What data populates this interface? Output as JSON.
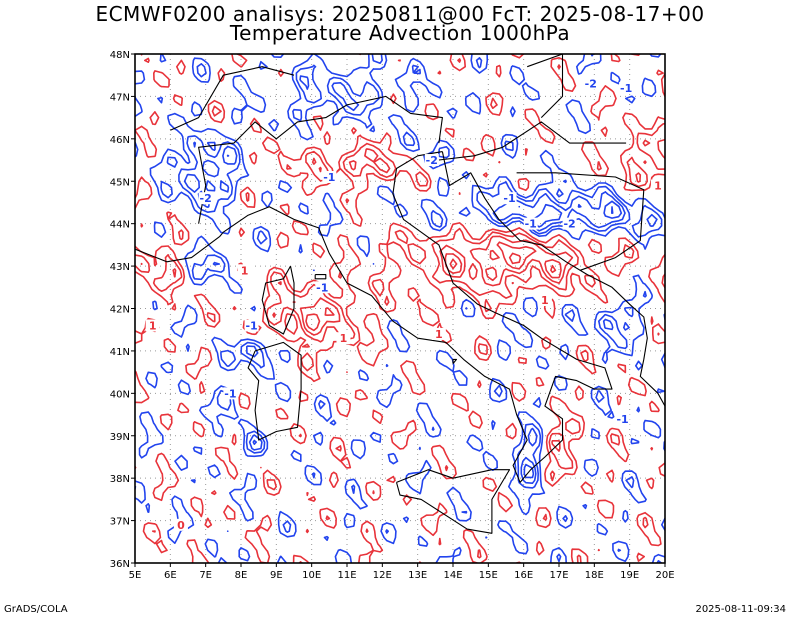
{
  "title_line1": "ECMWF0200 analisys: 20250811@00 FcT: 2025-08-17+00",
  "title_line2": "Temperature Advection 1000hPa",
  "footer_left": "GrADS/COLA",
  "footer_right": "2025-08-11-09:34",
  "map": {
    "lat_labels": [
      "48N",
      "47N",
      "46N",
      "45N",
      "44N",
      "43N",
      "42N",
      "41N",
      "40N",
      "39N",
      "38N",
      "37N",
      "36N"
    ],
    "lon_labels": [
      "5E",
      "6E",
      "7E",
      "8E",
      "9E",
      "10E",
      "11E",
      "12E",
      "13E",
      "14E",
      "15E",
      "16E",
      "17E",
      "18E",
      "19E",
      "20E"
    ],
    "lon_range": [
      5,
      20
    ],
    "lat_range": [
      36,
      48
    ],
    "grid": "dotted",
    "colors": {
      "warm_advection": "#e8333a",
      "cold_advection": "#2244ee",
      "coastline": "#000000",
      "grid": "#999999"
    },
    "contour_labels": [
      {
        "text": "-2",
        "lon": 7.0,
        "lat": 44.6,
        "color": "cold"
      },
      {
        "text": "-1",
        "lon": 10.3,
        "lat": 42.5,
        "color": "cold"
      },
      {
        "text": "1",
        "lon": 10.9,
        "lat": 41.3,
        "color": "warm"
      },
      {
        "text": "-1",
        "lon": 16.2,
        "lat": 44.0,
        "color": "cold"
      },
      {
        "text": "-2",
        "lon": 17.3,
        "lat": 44.0,
        "color": "cold"
      },
      {
        "text": "-2",
        "lon": 13.4,
        "lat": 45.5,
        "color": "cold"
      },
      {
        "text": "-1",
        "lon": 15.6,
        "lat": 44.6,
        "color": "cold"
      },
      {
        "text": "-1",
        "lon": 18.8,
        "lat": 39.4,
        "color": "cold"
      },
      {
        "text": "-1",
        "lon": 18.9,
        "lat": 47.2,
        "color": "cold"
      },
      {
        "text": "-2",
        "lon": 17.9,
        "lat": 47.3,
        "color": "cold"
      },
      {
        "text": "1",
        "lon": 8.1,
        "lat": 42.9,
        "color": "warm"
      },
      {
        "text": "1",
        "lon": 16.6,
        "lat": 42.2,
        "color": "warm"
      },
      {
        "text": "-1",
        "lon": 10.5,
        "lat": 45.1,
        "color": "cold"
      },
      {
        "text": "1",
        "lon": 5.5,
        "lat": 41.6,
        "color": "warm"
      },
      {
        "text": "1",
        "lon": 19.8,
        "lat": 44.9,
        "color": "warm"
      },
      {
        "text": "-1",
        "lon": 8.3,
        "lat": 41.6,
        "color": "cold"
      },
      {
        "text": "0",
        "lon": 6.3,
        "lat": 36.9,
        "color": "warm"
      },
      {
        "text": "-1",
        "lon": 7.7,
        "lat": 40.0,
        "color": "cold"
      },
      {
        "text": "1",
        "lon": 13.6,
        "lat": 41.4,
        "color": "warm"
      }
    ]
  }
}
